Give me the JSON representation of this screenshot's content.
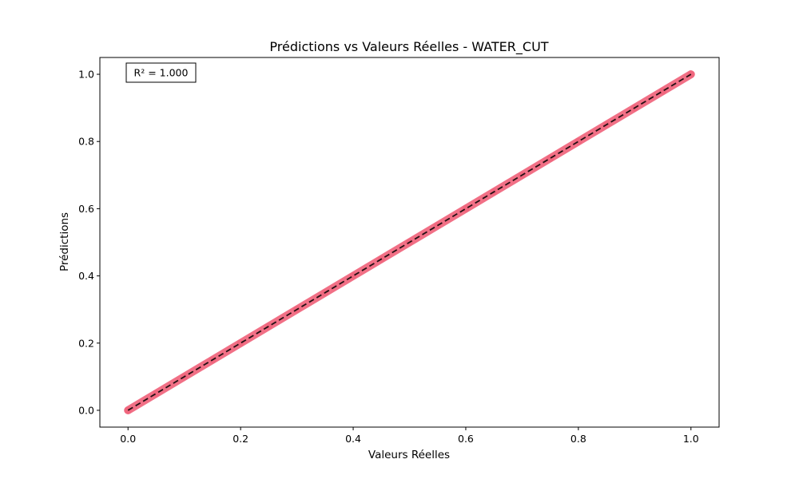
{
  "chart_data": {
    "type": "scatter",
    "title": "Prédictions vs Valeurs Réelles - WATER_CUT",
    "xlabel": "Valeurs Réelles",
    "ylabel": "Prédictions",
    "xlim": [
      -0.05,
      1.05
    ],
    "ylim": [
      -0.05,
      1.05
    ],
    "xticks": [
      0.0,
      0.2,
      0.4,
      0.6,
      0.8,
      1.0
    ],
    "yticks": [
      0.0,
      0.2,
      0.4,
      0.6,
      0.8,
      1.0
    ],
    "xtick_labels": [
      "0.0",
      "0.2",
      "0.4",
      "0.6",
      "0.8",
      "1.0"
    ],
    "ytick_labels": [
      "0.0",
      "0.2",
      "0.4",
      "0.6",
      "0.8",
      "1.0"
    ],
    "grid": false,
    "annotation": "R² = 1.000",
    "series": [
      {
        "kind": "scatter",
        "color": "#f0617a",
        "x": [
          0.0,
          0.05,
          0.1,
          0.15,
          0.2,
          0.25,
          0.3,
          0.35,
          0.4,
          0.45,
          0.5,
          0.55,
          0.6,
          0.65,
          0.7,
          0.75,
          0.8,
          0.85,
          0.9,
          0.95,
          1.0
        ],
        "y": [
          0.0,
          0.05,
          0.1,
          0.15,
          0.2,
          0.25,
          0.3,
          0.35,
          0.4,
          0.45,
          0.5,
          0.55,
          0.6,
          0.65,
          0.7,
          0.75,
          0.8,
          0.85,
          0.9,
          0.95,
          1.0
        ]
      },
      {
        "kind": "reference-line",
        "color": "#000000",
        "style": "dashed",
        "x": [
          0.0,
          1.0
        ],
        "y": [
          0.0,
          1.0
        ]
      }
    ]
  }
}
